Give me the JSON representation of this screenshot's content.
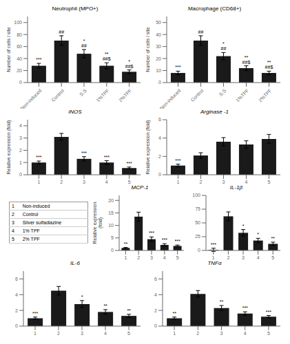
{
  "chart_data": [
    {
      "type": "bar",
      "title": "Neutrophil (MPO+)",
      "ylabel": "Number of cells / site",
      "categories": [
        "Non-induced",
        "Control",
        "S.S",
        "1%TPF",
        "2%TPF"
      ],
      "values": [
        28,
        70,
        48,
        28,
        18
      ],
      "errors": [
        4,
        8,
        7,
        5,
        3
      ],
      "ylim": [
        0,
        110
      ],
      "yticks": [
        0,
        20,
        40,
        60,
        80,
        100
      ],
      "color": "#1a1a1a",
      "annotations": [
        {
          "category": "Non-induced",
          "text": "***"
        },
        {
          "category": "Control",
          "text": "##"
        },
        {
          "category": "S.S",
          "text": "*\n##"
        },
        {
          "category": "1%TPF",
          "text": "**\n##$"
        },
        {
          "category": "2%TPF",
          "text": "*\n##$"
        }
      ]
    },
    {
      "type": "bar",
      "title": "Macrophage (CD68+)",
      "ylabel": "Number of cells / site",
      "categories": [
        "Non-induced",
        "Control",
        "S.S",
        "1%TPF",
        "2%TPF"
      ],
      "values": [
        8,
        35,
        22,
        12,
        8
      ],
      "errors": [
        1.5,
        4,
        3,
        2,
        1.5
      ],
      "ylim": [
        0,
        55
      ],
      "yticks": [
        0,
        10,
        20,
        30,
        40,
        50
      ],
      "color": "#1a1a1a",
      "annotations": [
        {
          "category": "Non-induced",
          "text": "***"
        },
        {
          "category": "Control",
          "text": "##"
        },
        {
          "category": "S.S",
          "text": "*\n##"
        },
        {
          "category": "1%TPF",
          "text": "**\n##$"
        },
        {
          "category": "2%TPF",
          "text": "**\n##$"
        }
      ]
    },
    {
      "type": "bar",
      "title": "iNOS",
      "ylabel": "Relative expression (fold)",
      "categories": [
        "1",
        "2",
        "3",
        "4",
        "5"
      ],
      "values": [
        1.0,
        3.1,
        1.3,
        1.0,
        0.55
      ],
      "errors": [
        0.12,
        0.28,
        0.18,
        0.15,
        0.08
      ],
      "ylim": [
        0,
        4.5
      ],
      "yticks": [
        0,
        1,
        2,
        3,
        4
      ],
      "color": "#1a1a1a",
      "annotations": [
        {
          "category": "1",
          "text": "***"
        },
        {
          "category": "3",
          "text": "***"
        },
        {
          "category": "4",
          "text": "***"
        },
        {
          "category": "5",
          "text": "***"
        }
      ]
    },
    {
      "type": "bar",
      "title": "Arginase -1",
      "ylabel": "Relative expression (fold)",
      "categories": [
        "1",
        "2",
        "3",
        "4",
        "5"
      ],
      "values": [
        1.0,
        2.1,
        3.6,
        3.3,
        3.9
      ],
      "errors": [
        0.15,
        0.3,
        0.45,
        0.4,
        0.5
      ],
      "ylim": [
        0,
        6
      ],
      "yticks": [
        0,
        2,
        4,
        6
      ],
      "color": "#1a1a1a",
      "annotations": [
        {
          "category": "1",
          "text": "***"
        }
      ]
    },
    {
      "type": "table",
      "rows": [
        [
          "1",
          "Non-induced"
        ],
        [
          "2",
          "Control"
        ],
        [
          "3",
          "Silver sulfadiazine"
        ],
        [
          "4",
          "1% TPF"
        ],
        [
          "5",
          "2% TPF"
        ]
      ]
    },
    {
      "type": "bar",
      "title": "MCP-1",
      "ylabel": "Relative expression\n(fold)",
      "categories": [
        "1",
        "2",
        "3",
        "4",
        "5"
      ],
      "values": [
        1.0,
        13.5,
        4.5,
        2.2,
        1.8
      ],
      "errors": [
        0.2,
        1.8,
        0.9,
        0.5,
        0.35
      ],
      "ylim": [
        0,
        22
      ],
      "yticks": [
        0,
        5,
        10,
        15,
        20
      ],
      "color": "#1a1a1a",
      "annotations": [
        {
          "category": "1",
          "text": "**"
        },
        {
          "category": "3",
          "text": "***"
        },
        {
          "category": "4",
          "text": "***"
        },
        {
          "category": "5",
          "text": "***"
        }
      ]
    },
    {
      "type": "bar",
      "title": "IL-1β",
      "categories": [
        "1",
        "2",
        "3",
        "4",
        "5"
      ],
      "values": [
        1.0,
        62.0,
        32.0,
        18.0,
        12.0
      ],
      "errors": [
        3,
        8,
        6,
        4,
        3
      ],
      "ylim": [
        0,
        100
      ],
      "yticks": [
        0,
        25,
        50,
        75,
        100
      ],
      "color": "#1a1a1a",
      "annotations": [
        {
          "category": "1",
          "text": "***"
        },
        {
          "category": "3",
          "text": "*"
        },
        {
          "category": "4",
          "text": "*"
        },
        {
          "category": "5",
          "text": "**"
        }
      ]
    },
    {
      "type": "bar",
      "title": "IL-6",
      "categories": [
        "1",
        "2",
        "3",
        "4",
        "5"
      ],
      "values": [
        1.0,
        4.5,
        2.8,
        1.8,
        1.3
      ],
      "errors": [
        0.15,
        0.55,
        0.45,
        0.3,
        0.2
      ],
      "ylim": [
        0,
        7
      ],
      "yticks": [
        0,
        2,
        4,
        6
      ],
      "color": "#1a1a1a",
      "annotations": [
        {
          "category": "1",
          "text": "***"
        },
        {
          "category": "3",
          "text": "*"
        },
        {
          "category": "4",
          "text": "**"
        },
        {
          "category": "5",
          "text": "**"
        }
      ]
    },
    {
      "type": "bar",
      "title": "TNFα",
      "categories": [
        "1",
        "2",
        "3",
        "4",
        "5"
      ],
      "values": [
        1.0,
        4.1,
        2.3,
        1.6,
        1.2
      ],
      "errors": [
        0.15,
        0.42,
        0.32,
        0.22,
        0.15
      ],
      "ylim": [
        0,
        7
      ],
      "yticks": [
        0,
        2,
        4,
        6
      ],
      "color": "#1a1a1a",
      "annotations": [
        {
          "category": "1",
          "text": "**"
        },
        {
          "category": "3",
          "text": "**"
        },
        {
          "category": "4",
          "text": "***"
        },
        {
          "category": "5",
          "text": "***"
        }
      ]
    }
  ]
}
